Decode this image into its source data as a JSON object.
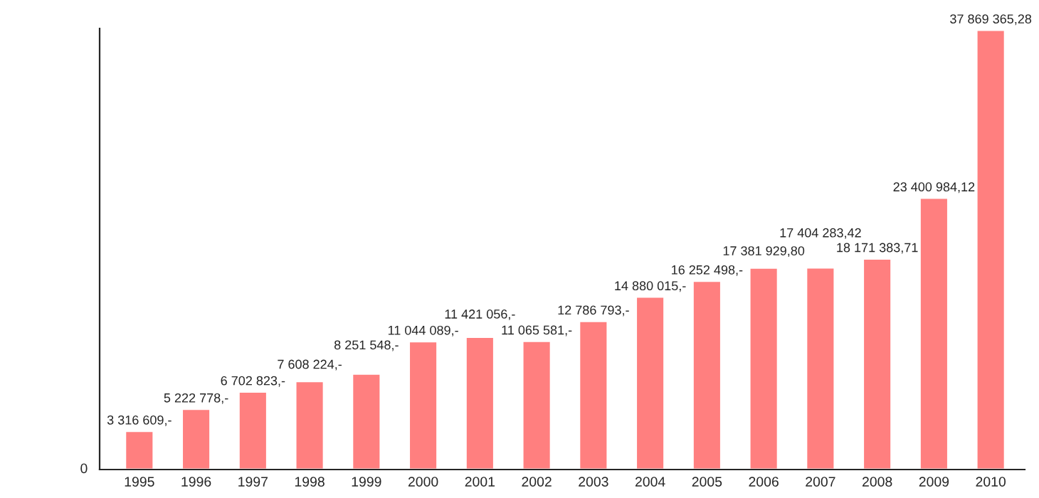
{
  "chart_data": {
    "type": "bar",
    "categories": [
      "1995",
      "1996",
      "1997",
      "1998",
      "1999",
      "2000",
      "2001",
      "2002",
      "2003",
      "2004",
      "2005",
      "2006",
      "2007",
      "2008",
      "2009",
      "2010"
    ],
    "values": [
      3316609,
      5222778,
      6702823,
      7608224,
      8251548,
      11044089,
      11421056,
      11065581,
      12786793,
      14880015,
      16252498,
      17381929.8,
      17404283.42,
      18171383.71,
      23400984.12,
      37869365.28
    ],
    "value_labels": [
      "3 316 609,-",
      "5 222 778,-",
      "6 702 823,-",
      "7 608 224,-",
      "8 251 548,-",
      "11 044 089,-",
      "11 421 056,-",
      "11 065 581,-",
      "12 786 793,-",
      "14 880 015,-",
      "16 252 498,-",
      "17 381 929,80",
      "17 404 283,42",
      "18 171 383,71",
      "23 400 984,12",
      "37 869 365,28"
    ],
    "color": "#ff7f7f",
    "ylim": [
      0,
      38000000
    ],
    "annotations": [
      "0"
    ],
    "grid": false,
    "legend": false
  }
}
